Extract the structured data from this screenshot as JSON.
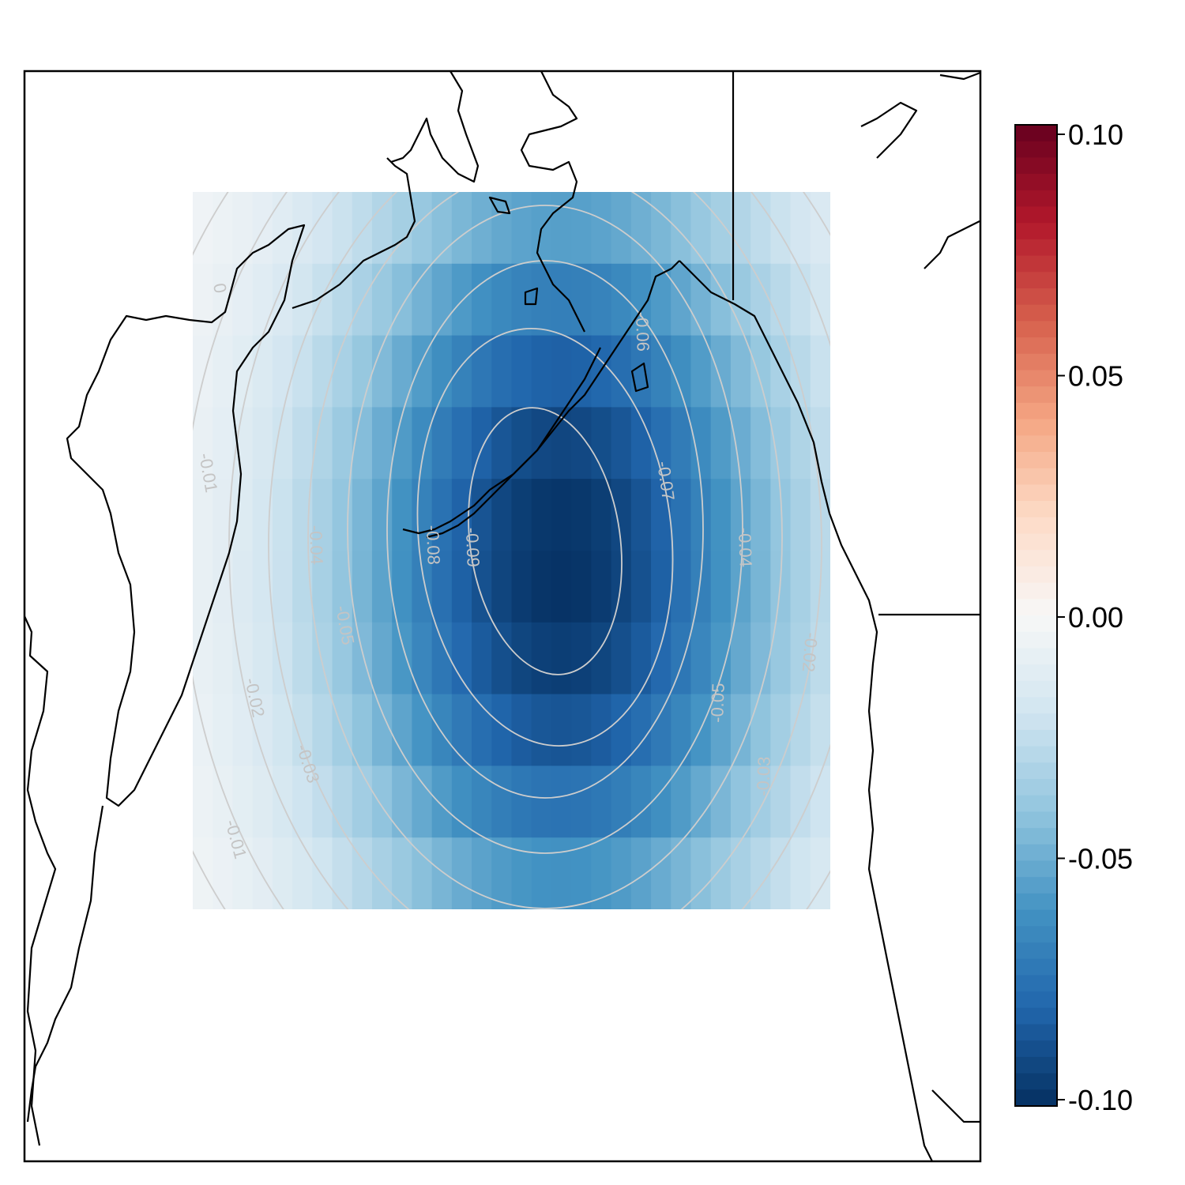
{
  "chart_data": {
    "type": "heatmap",
    "title": "",
    "xlabel": "",
    "ylabel": "",
    "grid": false,
    "legend_placement": "right",
    "colorbar": {
      "range": [
        -0.1,
        0.1
      ],
      "ticks": [
        {
          "value": 0.1,
          "label": "0.10"
        },
        {
          "value": 0.05,
          "label": "0.05"
        },
        {
          "value": 0.0,
          "label": "0.00"
        },
        {
          "value": -0.05,
          "label": "-0.05"
        },
        {
          "value": -0.1,
          "label": "-0.10"
        }
      ],
      "colors": [
        "#053061",
        "#2166ac",
        "#4393c3",
        "#92c5de",
        "#d1e5f0",
        "#f7f7f7",
        "#fddbc7",
        "#f4a582",
        "#d6604d",
        "#b2182b",
        "#67001f"
      ]
    },
    "field": {
      "rows": 10,
      "cols": 32,
      "center_col": 18.5,
      "center_row": 5.2,
      "min_value": -0.1,
      "description_values": "negative anomaly centered over the Gulf of Alaska / Aleutian region, minimum about -0.10, near 0.00 at corners"
    },
    "contours": {
      "levels": [
        -0.01,
        -0.02,
        -0.03,
        -0.04,
        -0.05,
        -0.06,
        -0.07,
        -0.08,
        -0.09
      ],
      "labels": [
        "0",
        "-0.01",
        "-0.01",
        "-0.02",
        "-0.02",
        "-0.03",
        "-0.03",
        "-0.04",
        "-0.04",
        "-0.05",
        "-0.05",
        "-0.06",
        "-0.07",
        "-0.08",
        "-0.09"
      ]
    }
  }
}
